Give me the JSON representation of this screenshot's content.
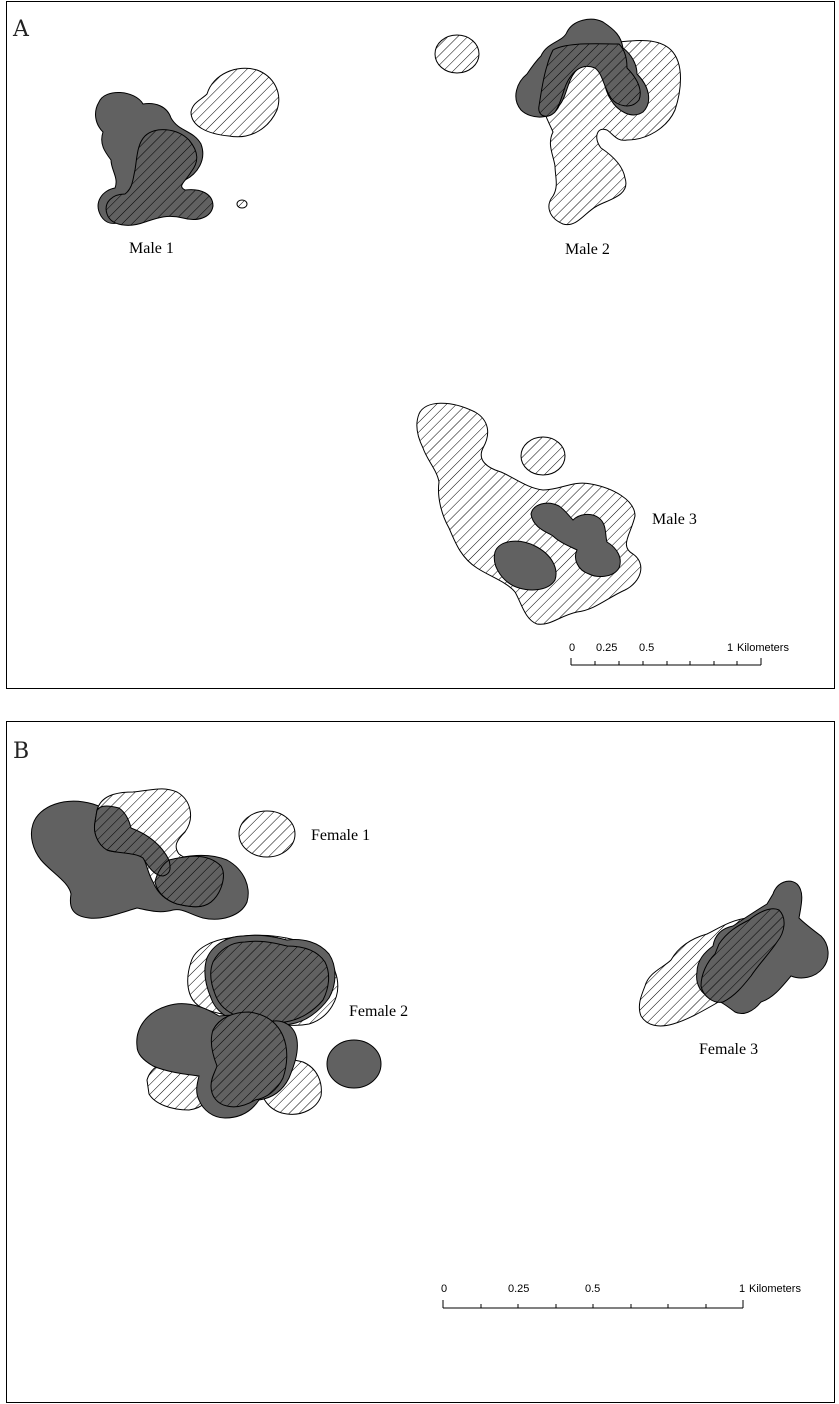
{
  "panels": [
    {
      "letter": "A",
      "labels": {
        "male1": "Male 1",
        "male2": "Male 2",
        "male3": "Male 3"
      },
      "scale": {
        "ticks": [
          "0",
          "0.25",
          "0.5",
          "1"
        ],
        "unit": "Kilometers"
      }
    },
    {
      "letter": "B",
      "labels": {
        "female1": "Female 1",
        "female2": "Female 2",
        "female3": "Female 3"
      },
      "scale": {
        "ticks": [
          "0",
          "0.25",
          "0.5",
          "1"
        ],
        "unit": "Kilometers"
      }
    }
  ],
  "colors": {
    "dark_range": "#616161",
    "hatch_line": "#000000",
    "frame": "#000000"
  }
}
